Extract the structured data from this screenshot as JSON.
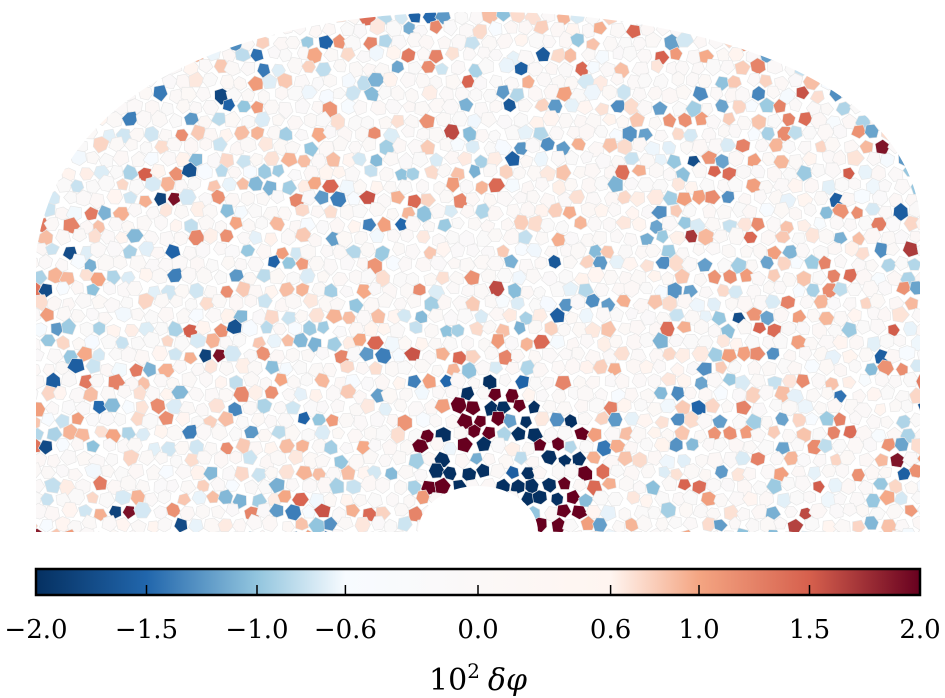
{
  "chart_data": {
    "type": "heatmap",
    "description_free": true,
    "title": "",
    "xlabel": "",
    "ylabel": "",
    "colormap": {
      "name": "RdBu_r",
      "stops": [
        {
          "v": -2.0,
          "color": "#053061"
        },
        {
          "v": -1.5,
          "color": "#2166ac"
        },
        {
          "v": -1.0,
          "color": "#92c5de"
        },
        {
          "v": -0.6,
          "color": "#f7fbff"
        },
        {
          "v": 0.6,
          "color": "#fff5f0"
        },
        {
          "v": 1.0,
          "color": "#f4a582"
        },
        {
          "v": 1.5,
          "color": "#d6604d"
        },
        {
          "v": 2.0,
          "color": "#67001f"
        }
      ]
    },
    "colorbar": {
      "label_base": "10",
      "label_exp": "2",
      "label_symbol": "δφ",
      "range": [
        -2.0,
        2.0
      ],
      "ticks": [
        {
          "value": -2.0,
          "label": "−2.0"
        },
        {
          "value": -1.5,
          "label": "−1.5"
        },
        {
          "value": -1.0,
          "label": "−1.0"
        },
        {
          "value": -0.6,
          "label": "−0.6"
        },
        {
          "value": 0.0,
          "label": "0.0"
        },
        {
          "value": 0.6,
          "label": "0.6"
        },
        {
          "value": 1.0,
          "label": "1.0"
        },
        {
          "value": 1.5,
          "label": "1.5"
        },
        {
          "value": 2.0,
          "label": "2.0"
        }
      ]
    },
    "field": {
      "shape": "half-annulus",
      "value_range": [
        -2.0,
        2.0
      ],
      "notes_cells": "polygonal cells colored by value"
    }
  }
}
